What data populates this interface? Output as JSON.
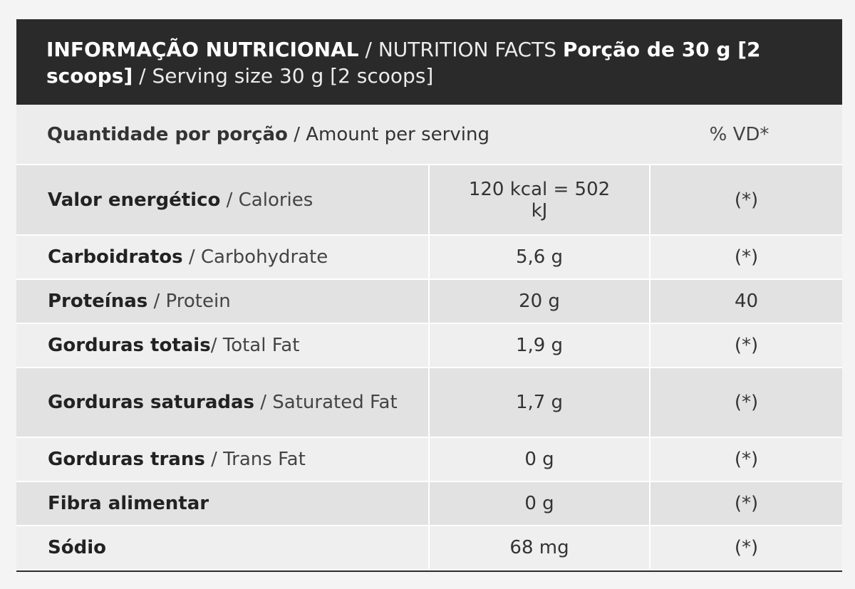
{
  "header": {
    "pt_title": "INFORMAÇÃO NUTRICIONAL",
    "en_title": " / NUTRITION FACTS ",
    "pt_serving": "Porção de 30 g [2 scoops]",
    "en_serving": " / Serving size 30 g [2 scoops]"
  },
  "subhead": {
    "pt_label": "Quantidade por porção",
    "en_label": " / Amount per serving",
    "vd_label": "% VD*"
  },
  "rows": [
    {
      "pt": "Valor energético",
      "en": " / Calories",
      "amount": "120 kcal = 502 kJ",
      "vd": "(*)"
    },
    {
      "pt": "Carboidratos",
      "en": " / Carbohydrate",
      "amount": "5,6 g",
      "vd": "(*)"
    },
    {
      "pt": "Proteínas",
      "en": " / Protein",
      "amount": "20 g",
      "vd": "40"
    },
    {
      "pt": "Gorduras totais",
      "en": "/ Total Fat",
      "amount": "1,9 g",
      "vd": "(*)"
    },
    {
      "pt": "Gorduras saturadas",
      "en": " / Saturated Fat",
      "amount": "1,7 g",
      "vd": "(*)"
    },
    {
      "pt": "Gorduras trans",
      "en": " / Trans Fat",
      "amount": "0 g",
      "vd": "(*)"
    },
    {
      "pt": "Fibra alimentar",
      "en": "",
      "amount": "0 g",
      "vd": "(*)"
    },
    {
      "pt": "Sódio",
      "en": "",
      "amount": "68 mg",
      "vd": "(*)"
    }
  ]
}
